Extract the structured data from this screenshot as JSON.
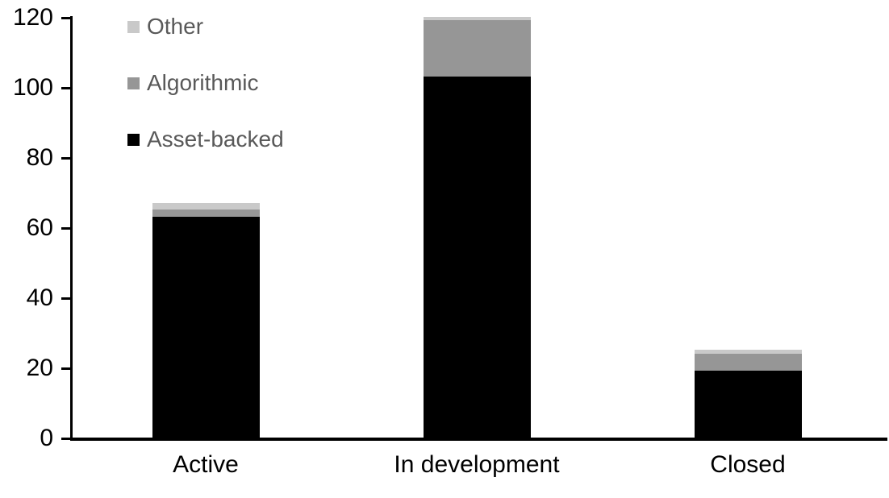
{
  "chart_data": {
    "type": "bar",
    "stacked": true,
    "title": "",
    "xlabel": "",
    "ylabel": "",
    "categories": [
      "Active",
      "In development",
      "Closed"
    ],
    "series": [
      {
        "name": "Asset-backed",
        "color": "#000000",
        "values": [
          63,
          103,
          19
        ]
      },
      {
        "name": "Algorithmic",
        "color": "#969696",
        "values": [
          2,
          16,
          5
        ]
      },
      {
        "name": "Other",
        "color": "#C9C9C9",
        "values": [
          2,
          1,
          1
        ]
      }
    ],
    "totals": [
      67,
      120,
      25
    ],
    "ylim": [
      0,
      120
    ],
    "yticks": [
      0,
      20,
      40,
      60,
      80,
      100,
      120
    ],
    "grid": false,
    "legend_position": "top-left-inside",
    "legend_order_top_to_bottom": [
      "Other",
      "Algorithmic",
      "Asset-backed"
    ],
    "axis_color": "#000000",
    "tick_label_color": "#000000",
    "category_label_color": "#000000",
    "legend_text_color": "#595959",
    "background_color": "#FFFFFF"
  }
}
